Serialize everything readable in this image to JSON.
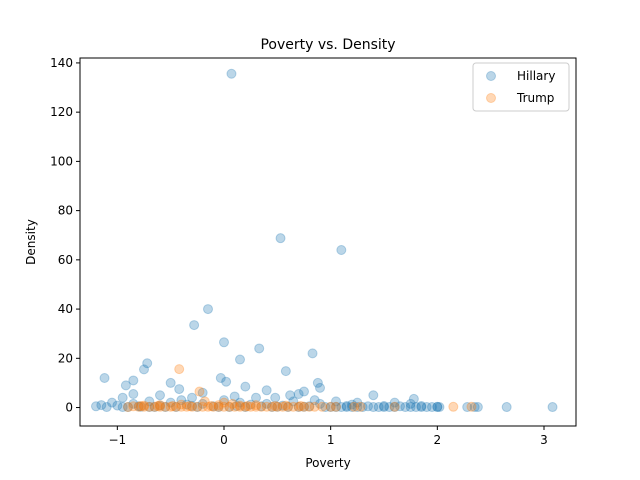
{
  "chart_data": {
    "type": "scatter",
    "title": "Poverty vs. Density",
    "xlabel": "Poverty",
    "ylabel": "Density",
    "xlim": [
      -1.35,
      3.3
    ],
    "ylim": [
      -7.5,
      142
    ],
    "xticks": [
      -1,
      0,
      1,
      2,
      3
    ],
    "xtick_labels": [
      "−1",
      "0",
      "1",
      "2",
      "3"
    ],
    "yticks": [
      0,
      20,
      40,
      60,
      80,
      100,
      120,
      140
    ],
    "ytick_labels": [
      "0",
      "20",
      "40",
      "60",
      "80",
      "100",
      "120",
      "140"
    ],
    "grid": false,
    "legend_position": "top-right",
    "series": [
      {
        "name": "Hillary",
        "color": "#1f77b4",
        "points": [
          [
            0.07,
            135.6
          ],
          [
            0.53,
            68.8
          ],
          [
            1.1,
            64
          ],
          [
            -0.15,
            40
          ],
          [
            -0.28,
            33.5
          ],
          [
            0.0,
            26.5
          ],
          [
            0.33,
            24
          ],
          [
            0.83,
            22
          ],
          [
            0.15,
            19.5
          ],
          [
            -0.72,
            18
          ],
          [
            -0.75,
            15.5
          ],
          [
            0.58,
            14.8
          ],
          [
            -0.03,
            12
          ],
          [
            -1.12,
            12
          ],
          [
            -0.85,
            11
          ],
          [
            0.02,
            10.5
          ],
          [
            -0.5,
            10
          ],
          [
            0.88,
            10
          ],
          [
            -0.92,
            9
          ],
          [
            0.2,
            8.5
          ],
          [
            0.9,
            8
          ],
          [
            -0.42,
            7.5
          ],
          [
            0.4,
            7
          ],
          [
            0.75,
            6.5
          ],
          [
            -0.2,
            6
          ],
          [
            0.7,
            5.5
          ],
          [
            -0.6,
            5
          ],
          [
            1.4,
            5
          ],
          [
            0.62,
            5
          ],
          [
            -0.85,
            5.5
          ],
          [
            0.1,
            4.5
          ],
          [
            0.3,
            4
          ],
          [
            -0.3,
            4
          ],
          [
            0.48,
            4
          ],
          [
            -0.95,
            4
          ],
          [
            1.78,
            3.5
          ],
          [
            0.85,
            3
          ],
          [
            -0.4,
            3
          ],
          [
            0.0,
            3
          ],
          [
            -0.7,
            2.5
          ],
          [
            0.65,
            2.5
          ],
          [
            1.05,
            2.5
          ],
          [
            0.15,
            2
          ],
          [
            -0.5,
            2
          ],
          [
            1.25,
            2
          ],
          [
            1.6,
            2
          ],
          [
            -1.05,
            2
          ],
          [
            0.9,
            1.5
          ],
          [
            -0.2,
            1.5
          ],
          [
            0.4,
            1.5
          ],
          [
            1.75,
            1.5
          ],
          [
            -0.85,
            1.5
          ],
          [
            -0.35,
            1.2
          ],
          [
            0.25,
            1.2
          ],
          [
            1.2,
            1.2
          ],
          [
            -1.15,
            1
          ],
          [
            -1.0,
            0.8
          ],
          [
            -0.6,
            0.8
          ],
          [
            0.55,
            0.8
          ],
          [
            1.15,
            0.6
          ],
          [
            1.5,
            0.6
          ],
          [
            1.85,
            0.6
          ],
          [
            -1.2,
            0.5
          ],
          [
            -0.8,
            0.5
          ],
          [
            -0.1,
            0.5
          ],
          [
            0.35,
            0.5
          ],
          [
            0.8,
            0.5
          ],
          [
            1.35,
            0.5
          ],
          [
            1.65,
            0.5
          ],
          [
            2.0,
            0.3
          ],
          [
            1.1,
            0.2
          ],
          [
            1.2,
            0.2
          ],
          [
            1.3,
            0.2
          ],
          [
            1.4,
            0.2
          ],
          [
            1.45,
            0.2
          ],
          [
            1.55,
            0.2
          ],
          [
            1.6,
            0.2
          ],
          [
            1.7,
            0.2
          ],
          [
            1.8,
            0.2
          ],
          [
            1.85,
            0.2
          ],
          [
            1.9,
            0.2
          ],
          [
            1.95,
            0.2
          ],
          [
            2.02,
            0.2
          ],
          [
            2.28,
            0.2
          ],
          [
            2.35,
            0.2
          ],
          [
            2.38,
            0.2
          ],
          [
            2.65,
            0.2
          ],
          [
            3.08,
            0.2
          ],
          [
            -1.1,
            0.2
          ],
          [
            -0.95,
            0.2
          ],
          [
            -0.9,
            0.2
          ],
          [
            -0.7,
            0.2
          ],
          [
            -0.65,
            0.2
          ],
          [
            -0.55,
            0.2
          ],
          [
            -0.45,
            0.2
          ],
          [
            -0.25,
            0.2
          ],
          [
            -0.05,
            0.2
          ],
          [
            0.05,
            0.2
          ],
          [
            0.2,
            0.2
          ],
          [
            0.45,
            0.2
          ],
          [
            0.6,
            0.2
          ],
          [
            0.7,
            0.2
          ],
          [
            0.95,
            0.2
          ],
          [
            1.0,
            0.2
          ],
          [
            1.05,
            0.2
          ],
          [
            1.15,
            0.2
          ],
          [
            1.25,
            0.2
          ],
          [
            1.5,
            0.2
          ],
          [
            1.75,
            0.2
          ],
          [
            2.0,
            0.2
          ],
          [
            -0.3,
            0.6
          ],
          [
            0.12,
            0.6
          ],
          [
            0.5,
            0.3
          ],
          [
            0.75,
            0.3
          ],
          [
            -0.78,
            0.3
          ]
        ]
      },
      {
        "name": "Trump",
        "color": "#ff7f0e",
        "points": [
          [
            -0.42,
            15.6
          ],
          [
            -0.23,
            6.5
          ],
          [
            -0.18,
            2.5
          ],
          [
            0.0,
            2
          ],
          [
            0.08,
            1.5
          ],
          [
            -0.4,
            1.2
          ],
          [
            0.3,
            1.0
          ],
          [
            -0.6,
            1.0
          ],
          [
            0.15,
            0.8
          ],
          [
            -0.75,
            0.8
          ],
          [
            -0.85,
            0.5
          ],
          [
            -0.8,
            0.3
          ],
          [
            -0.75,
            0.3
          ],
          [
            -0.7,
            0.3
          ],
          [
            -0.65,
            0.3
          ],
          [
            -0.6,
            0.3
          ],
          [
            -0.55,
            0.3
          ],
          [
            -0.5,
            0.3
          ],
          [
            -0.45,
            0.3
          ],
          [
            -0.4,
            0.3
          ],
          [
            -0.35,
            0.3
          ],
          [
            -0.3,
            0.3
          ],
          [
            -0.25,
            0.3
          ],
          [
            -0.2,
            0.3
          ],
          [
            -0.15,
            0.3
          ],
          [
            -0.1,
            0.3
          ],
          [
            -0.05,
            0.3
          ],
          [
            0.0,
            0.3
          ],
          [
            0.05,
            0.3
          ],
          [
            0.1,
            0.3
          ],
          [
            0.15,
            0.3
          ],
          [
            0.2,
            0.3
          ],
          [
            0.25,
            0.3
          ],
          [
            0.3,
            0.3
          ],
          [
            0.35,
            0.3
          ],
          [
            0.4,
            0.3
          ],
          [
            0.45,
            0.3
          ],
          [
            0.5,
            0.3
          ],
          [
            0.55,
            0.3
          ],
          [
            0.6,
            0.3
          ],
          [
            0.65,
            0.3
          ],
          [
            0.7,
            0.3
          ],
          [
            0.75,
            0.3
          ],
          [
            0.8,
            0.3
          ],
          [
            0.85,
            0.3
          ],
          [
            0.92,
            0.3
          ],
          [
            1.0,
            0.3
          ],
          [
            1.05,
            0.3
          ],
          [
            1.22,
            0.3
          ],
          [
            1.28,
            0.3
          ],
          [
            1.6,
            0.3
          ],
          [
            2.15,
            0.3
          ],
          [
            2.32,
            0.3
          ],
          [
            -0.9,
            0.2
          ],
          [
            -0.78,
            0.6
          ],
          [
            -0.62,
            0.6
          ],
          [
            -0.48,
            0.6
          ],
          [
            -0.32,
            0.6
          ],
          [
            -0.12,
            0.6
          ],
          [
            0.22,
            0.6
          ],
          [
            0.48,
            0.6
          ],
          [
            0.72,
            0.6
          ],
          [
            0.58,
            0.8
          ],
          [
            -0.05,
            1.0
          ]
        ]
      }
    ]
  }
}
